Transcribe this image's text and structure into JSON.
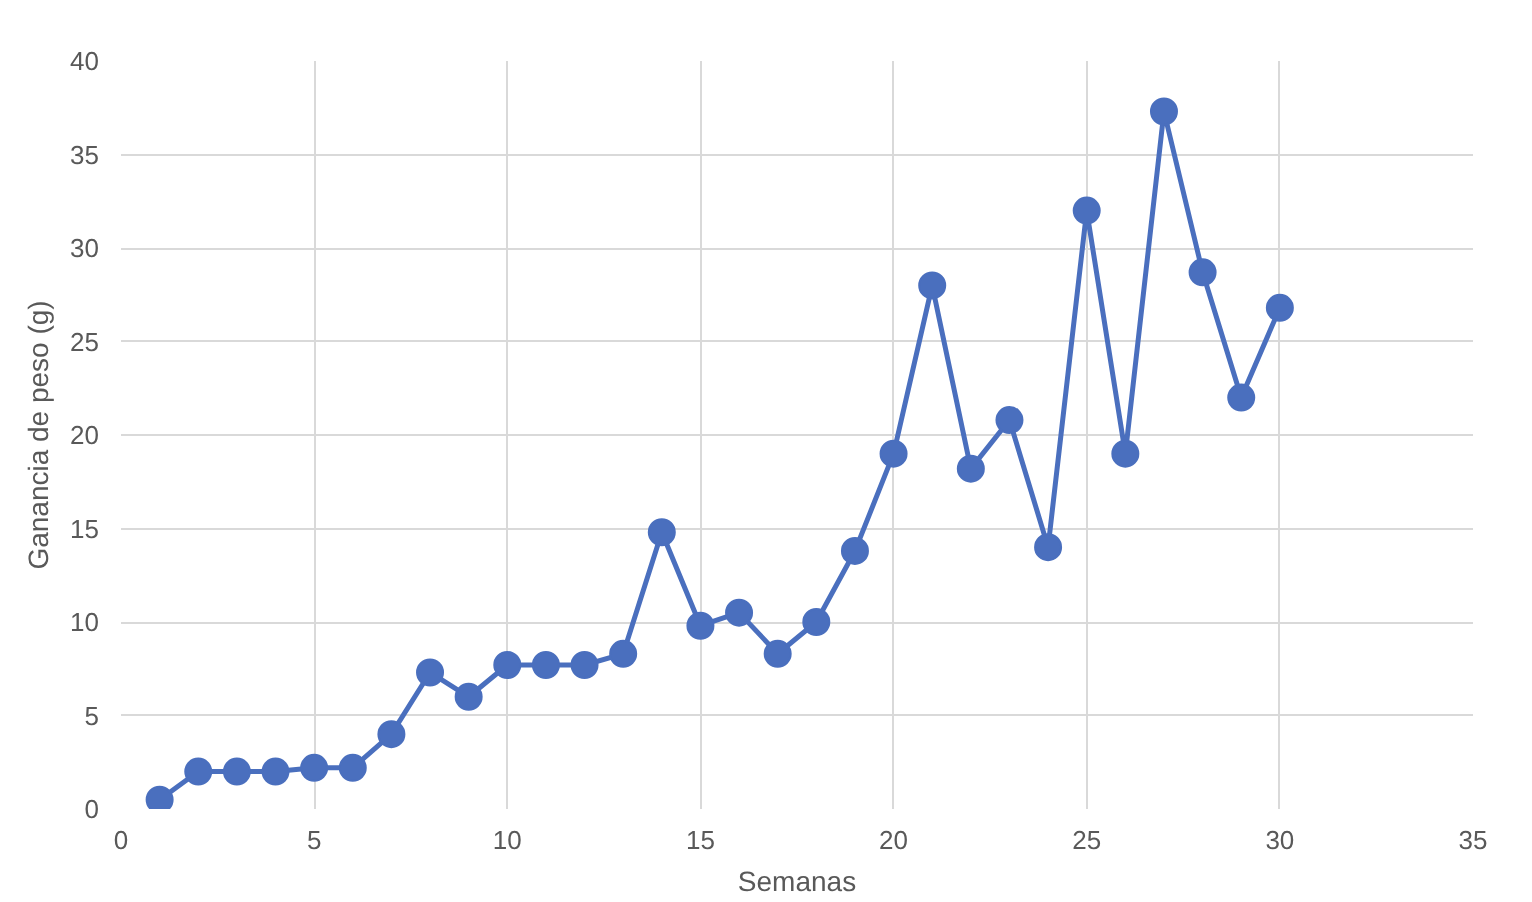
{
  "chart_data": {
    "type": "line",
    "xlabel": "Semanas",
    "ylabel": "Ganancia de peso (g)",
    "x": [
      1,
      2,
      3,
      4,
      5,
      6,
      7,
      8,
      9,
      10,
      11,
      12,
      13,
      14,
      15,
      16,
      17,
      18,
      19,
      20,
      21,
      22,
      23,
      24,
      25,
      26,
      27,
      28,
      29,
      30
    ],
    "series": [
      {
        "color": "#4a6fbe",
        "values": [
          0.5,
          2,
          2,
          2,
          2.2,
          2.2,
          4,
          7.3,
          6,
          7.7,
          7.7,
          7.7,
          8.3,
          14.8,
          9.8,
          10.5,
          8.3,
          10,
          13.8,
          19,
          28,
          18.2,
          20.8,
          14,
          32,
          19,
          37.3,
          28.7,
          22,
          26.8
        ]
      }
    ],
    "xlim": [
      0,
      35
    ],
    "xticks": [
      0,
      5,
      10,
      15,
      20,
      25,
      30,
      35
    ],
    "ylim": [
      0,
      40
    ],
    "yticks": [
      0,
      5,
      10,
      15,
      20,
      25,
      30,
      35,
      40
    ],
    "grid": true,
    "marker": "circle",
    "line_style": "solid"
  }
}
